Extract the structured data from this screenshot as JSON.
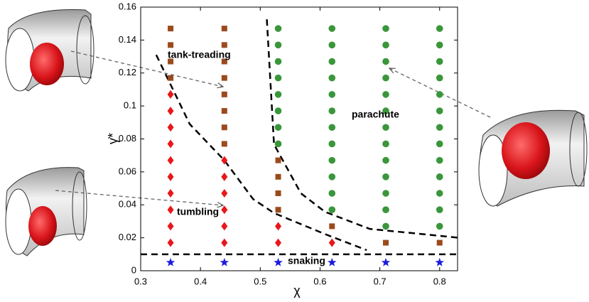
{
  "chart_data": {
    "type": "scatter",
    "xlabel": "χ",
    "ylabel": "γ̇*",
    "xlim": [
      0.3,
      0.83
    ],
    "xticks": [
      0.3,
      0.4,
      0.5,
      0.6,
      0.7,
      0.8
    ],
    "ylim": [
      0,
      0.16
    ],
    "yticks": [
      0,
      0.02,
      0.04,
      0.06,
      0.08,
      0.1,
      0.12,
      0.14,
      0.16
    ],
    "grid": false,
    "series": [
      {
        "name": "tank-treading",
        "marker": "square",
        "color": "#9b4a1c",
        "x": [
          0.35,
          0.35,
          0.35,
          0.35,
          0.44,
          0.44,
          0.44,
          0.44,
          0.44,
          0.44,
          0.44,
          0.44,
          0.53,
          0.53,
          0.53,
          0.53,
          0.62,
          0.71,
          0.8
        ],
        "y": [
          0.147,
          0.137,
          0.127,
          0.117,
          0.147,
          0.137,
          0.127,
          0.117,
          0.107,
          0.097,
          0.087,
          0.077,
          0.067,
          0.057,
          0.047,
          0.037,
          0.027,
          0.017,
          0.017
        ]
      },
      {
        "name": "tumbling",
        "marker": "diamond",
        "color": "#e8171b",
        "x": [
          0.35,
          0.35,
          0.35,
          0.35,
          0.35,
          0.35,
          0.35,
          0.35,
          0.35,
          0.35,
          0.44,
          0.44,
          0.44,
          0.44,
          0.44,
          0.44,
          0.53,
          0.53,
          0.62
        ],
        "y": [
          0.107,
          0.097,
          0.087,
          0.077,
          0.067,
          0.057,
          0.047,
          0.037,
          0.027,
          0.017,
          0.067,
          0.057,
          0.047,
          0.037,
          0.027,
          0.017,
          0.027,
          0.017,
          0.017
        ]
      },
      {
        "name": "parachute",
        "marker": "circle",
        "color": "#3a963a",
        "x": [
          0.53,
          0.53,
          0.53,
          0.53,
          0.53,
          0.53,
          0.53,
          0.53,
          0.62,
          0.62,
          0.62,
          0.62,
          0.62,
          0.62,
          0.62,
          0.62,
          0.62,
          0.62,
          0.62,
          0.62,
          0.71,
          0.71,
          0.71,
          0.71,
          0.71,
          0.71,
          0.71,
          0.71,
          0.71,
          0.71,
          0.71,
          0.71,
          0.71,
          0.8,
          0.8,
          0.8,
          0.8,
          0.8,
          0.8,
          0.8,
          0.8,
          0.8,
          0.8,
          0.8,
          0.8,
          0.8
        ],
        "y": [
          0.147,
          0.137,
          0.127,
          0.117,
          0.107,
          0.097,
          0.087,
          0.077,
          0.147,
          0.137,
          0.127,
          0.117,
          0.107,
          0.097,
          0.087,
          0.077,
          0.067,
          0.057,
          0.047,
          0.037,
          0.147,
          0.137,
          0.127,
          0.117,
          0.107,
          0.097,
          0.087,
          0.077,
          0.067,
          0.057,
          0.047,
          0.037,
          0.027,
          0.147,
          0.137,
          0.127,
          0.117,
          0.107,
          0.097,
          0.087,
          0.077,
          0.067,
          0.057,
          0.047,
          0.037,
          0.027
        ]
      },
      {
        "name": "snaking",
        "marker": "star",
        "color": "#1c1ce0",
        "x": [
          0.35,
          0.44,
          0.53,
          0.62,
          0.71,
          0.8
        ],
        "y": [
          0.005,
          0.005,
          0.005,
          0.005,
          0.005,
          0.005
        ]
      }
    ],
    "boundaries": [
      {
        "x": [
          0.326,
          0.382,
          0.44,
          0.488,
          0.523,
          0.61,
          0.678
        ],
        "y": [
          0.131,
          0.089,
          0.067,
          0.0435,
          0.035,
          0.022,
          0.0125
        ]
      },
      {
        "x": [
          0.511,
          0.523,
          0.568,
          0.608,
          0.683,
          0.833
        ],
        "y": [
          0.1526,
          0.0767,
          0.047,
          0.0358,
          0.0254,
          0.02
        ]
      },
      {
        "x": [
          0.3,
          0.83
        ],
        "y": [
          0.01,
          0.01
        ]
      }
    ]
  }
}
